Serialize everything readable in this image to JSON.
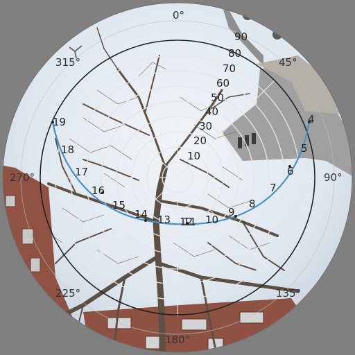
{
  "compass": {
    "north": "0°",
    "northeast": "45°",
    "east": "90°",
    "southeast": "135°",
    "south": "180°",
    "southwest": "225°",
    "west": "270°",
    "northwest": "315°"
  },
  "elevation_labels": [
    "90",
    "80",
    "70",
    "60",
    "50",
    "40",
    "30",
    "20",
    "10"
  ],
  "sun_path": {
    "color": "#4a90c8",
    "hours": [
      "4",
      "5",
      "6",
      "7",
      "8",
      "9",
      "10",
      "11",
      "12",
      "13",
      "14",
      "15",
      "16",
      "17",
      "18",
      "19"
    ]
  },
  "colors": {
    "background": "#808080",
    "horizon_circle": "#222222",
    "grid": "#f0f0f0",
    "sky": "#dfe8f1",
    "brick": "#8b4a3a",
    "stone": "#9f9f9f"
  }
}
